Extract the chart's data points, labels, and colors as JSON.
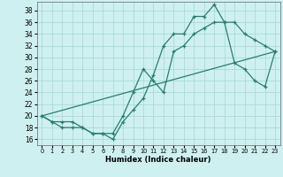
{
  "xlabel": "Humidex (Indice chaleur)",
  "bg_color": "#cff0f0",
  "grid_color": "#aadada",
  "line_color": "#2a7d6e",
  "xlim": [
    -0.5,
    23.5
  ],
  "ylim": [
    15,
    39.5
  ],
  "yticks": [
    16,
    18,
    20,
    22,
    24,
    26,
    28,
    30,
    32,
    34,
    36,
    38
  ],
  "xticks": [
    0,
    1,
    2,
    3,
    4,
    5,
    6,
    7,
    8,
    9,
    10,
    11,
    12,
    13,
    14,
    15,
    16,
    17,
    18,
    19,
    20,
    21,
    22,
    23
  ],
  "line1_x": [
    0,
    1,
    2,
    3,
    4,
    5,
    6,
    7,
    8,
    9,
    10,
    11,
    12,
    13,
    14,
    15,
    16,
    17,
    18,
    19,
    20,
    21,
    22,
    23
  ],
  "line1_y": [
    20,
    19,
    18,
    18,
    18,
    17,
    17,
    16,
    19,
    21,
    23,
    27,
    32,
    34,
    34,
    37,
    37,
    39,
    36,
    36,
    34,
    33,
    32,
    31
  ],
  "line2_x": [
    0,
    1,
    2,
    3,
    4,
    5,
    6,
    7,
    8,
    9,
    10,
    11,
    12,
    13,
    14,
    15,
    16,
    17,
    18,
    19,
    20,
    21,
    22,
    23
  ],
  "line2_y": [
    20,
    19,
    19,
    19,
    18,
    17,
    17,
    17,
    20,
    24,
    28,
    26,
    24,
    31,
    32,
    34,
    35,
    36,
    36,
    29,
    28,
    26,
    25,
    31
  ],
  "line3_x": [
    0,
    23
  ],
  "line3_y": [
    20,
    31
  ]
}
